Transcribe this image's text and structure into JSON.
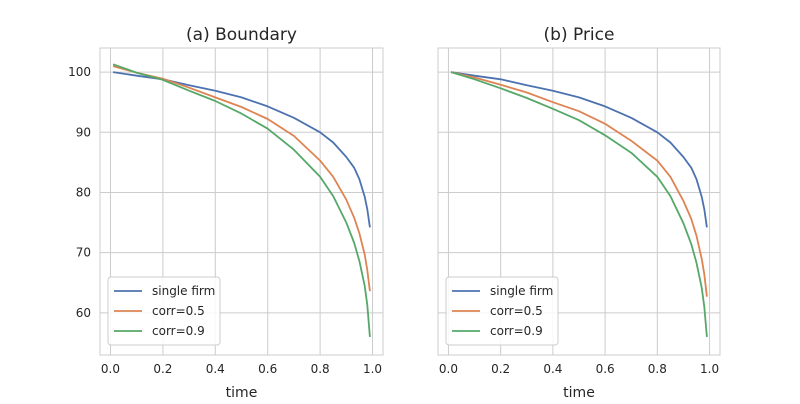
{
  "chart_data": [
    {
      "type": "line",
      "title": "(a) Boundary",
      "xlabel": "time",
      "ylabel": "",
      "xlim": [
        -0.04,
        1.04
      ],
      "ylim": [
        53,
        104
      ],
      "xticks": [
        "0.0",
        "0.2",
        "0.4",
        "0.6",
        "0.8",
        "1.0"
      ],
      "yticks": [
        "60",
        "70",
        "80",
        "90",
        "100"
      ],
      "grid": true,
      "legend_position": "lower-left",
      "x": [
        0.01,
        0.1,
        0.2,
        0.3,
        0.4,
        0.5,
        0.6,
        0.7,
        0.8,
        0.85,
        0.9,
        0.93,
        0.95,
        0.97,
        0.98,
        0.99
      ],
      "series": [
        {
          "name": "single firm",
          "color": "#4c72b0",
          "values": [
            100.0,
            99.4,
            98.8,
            97.8,
            96.9,
            95.8,
            94.3,
            92.4,
            90.0,
            88.3,
            85.9,
            84.1,
            82.2,
            79.3,
            77.2,
            74.2
          ]
        },
        {
          "name": "corr=0.5",
          "color": "#dd8452",
          "values": [
            101.0,
            99.9,
            98.9,
            97.4,
            95.8,
            94.2,
            92.2,
            89.4,
            85.3,
            82.6,
            78.8,
            75.8,
            73.2,
            69.7,
            67.1,
            63.6
          ]
        },
        {
          "name": "corr=0.9",
          "color": "#55a868",
          "values": [
            101.3,
            99.9,
            98.7,
            96.9,
            95.2,
            93.1,
            90.6,
            87.1,
            82.6,
            79.4,
            75.0,
            71.6,
            68.6,
            64.5,
            61.3,
            56.0
          ]
        }
      ]
    },
    {
      "type": "line",
      "title": "(b) Price",
      "xlabel": "time",
      "ylabel": "",
      "xlim": [
        -0.04,
        1.04
      ],
      "ylim": [
        53,
        104
      ],
      "xticks": [
        "0.0",
        "0.2",
        "0.4",
        "0.6",
        "0.8",
        "1.0"
      ],
      "yticks": [],
      "grid": true,
      "legend_position": "lower-left",
      "x": [
        0.01,
        0.1,
        0.2,
        0.3,
        0.4,
        0.5,
        0.6,
        0.7,
        0.8,
        0.85,
        0.9,
        0.93,
        0.95,
        0.97,
        0.98,
        0.99
      ],
      "series": [
        {
          "name": "single firm",
          "color": "#4c72b0",
          "values": [
            100.0,
            99.4,
            98.8,
            97.8,
            96.9,
            95.8,
            94.3,
            92.4,
            90.0,
            88.3,
            85.9,
            84.1,
            82.2,
            79.3,
            77.2,
            74.2
          ]
        },
        {
          "name": "corr=0.5",
          "color": "#dd8452",
          "values": [
            100.0,
            99.1,
            97.9,
            96.6,
            95.0,
            93.5,
            91.4,
            88.6,
            85.3,
            82.6,
            78.6,
            75.6,
            72.8,
            69.0,
            66.4,
            62.7
          ]
        },
        {
          "name": "corr=0.9",
          "color": "#55a868",
          "values": [
            100.0,
            98.8,
            97.3,
            95.7,
            93.9,
            92.0,
            89.5,
            86.6,
            82.6,
            79.4,
            74.9,
            71.4,
            68.3,
            64.2,
            61.0,
            56.0
          ]
        }
      ]
    }
  ]
}
